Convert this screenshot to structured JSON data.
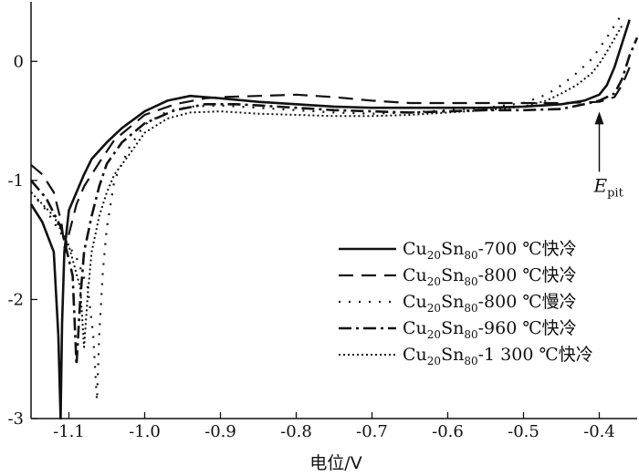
{
  "chart_data": {
    "type": "line",
    "title": "",
    "xlabel": "电位/V",
    "ylabel": "",
    "xlim": [
      -1.15,
      -0.35
    ],
    "ylim": [
      -3,
      0.5
    ],
    "x_ticks": [
      {
        "value": -1.1,
        "label": "-1.1"
      },
      {
        "value": -1.0,
        "label": "-1.0"
      },
      {
        "value": -0.9,
        "label": "-0.9"
      },
      {
        "value": -0.8,
        "label": "-0.8"
      },
      {
        "value": -0.7,
        "label": "-0.7"
      },
      {
        "value": -0.6,
        "label": "-0.6"
      },
      {
        "value": -0.5,
        "label": "-0.5"
      },
      {
        "value": -0.4,
        "label": "-0.4"
      }
    ],
    "y_ticks": [
      {
        "value": 0,
        "label": "0"
      },
      {
        "value": -1,
        "label": "-1"
      },
      {
        "value": -2,
        "label": "-2"
      },
      {
        "value": -3,
        "label": "-3"
      }
    ],
    "grid": false,
    "legend_position": "bottom-right",
    "annotation": {
      "text": "E",
      "sub": "pit",
      "x": -0.4,
      "y": -0.33
    },
    "series": [
      {
        "name": "Cu20Sn80-700 ℃快冷",
        "label_parts": [
          "Cu",
          "20",
          "Sn",
          "80",
          "-700 ℃快冷"
        ],
        "style": "solid",
        "x": [
          -1.15,
          -1.135,
          -1.12,
          -1.114,
          -1.111,
          -1.109,
          -1.106,
          -1.1,
          -1.09,
          -1.08,
          -1.07,
          -1.05,
          -1.03,
          -1.0,
          -0.97,
          -0.94,
          -0.92,
          -0.9,
          -0.85,
          -0.8,
          -0.75,
          -0.7,
          -0.65,
          -0.6,
          -0.55,
          -0.5,
          -0.45,
          -0.42,
          -0.4,
          -0.39,
          -0.38,
          -0.37,
          -0.36
        ],
        "y": [
          -1.2,
          -1.35,
          -1.6,
          -2.3,
          -3.0,
          -2.2,
          -1.6,
          -1.25,
          -1.1,
          -0.95,
          -0.82,
          -0.68,
          -0.56,
          -0.42,
          -0.33,
          -0.29,
          -0.3,
          -0.31,
          -0.34,
          -0.36,
          -0.38,
          -0.39,
          -0.39,
          -0.39,
          -0.39,
          -0.38,
          -0.36,
          -0.33,
          -0.28,
          -0.2,
          -0.05,
          0.15,
          0.35
        ]
      },
      {
        "name": "Cu20Sn80-800 ℃快冷",
        "label_parts": [
          "Cu",
          "20",
          "Sn",
          "80",
          "-800 ℃快冷"
        ],
        "style": "dashed",
        "x": [
          -1.15,
          -1.135,
          -1.12,
          -1.11,
          -1.105,
          -1.1,
          -1.09,
          -1.08,
          -1.06,
          -1.04,
          -1.0,
          -0.96,
          -0.92,
          -0.9,
          -0.85,
          -0.8,
          -0.75,
          -0.7,
          -0.65,
          -0.6,
          -0.55,
          -0.5,
          -0.45,
          -0.4,
          -0.38,
          -0.37,
          -0.36
        ],
        "y": [
          -0.87,
          -0.95,
          -1.1,
          -1.35,
          -1.6,
          -1.45,
          -1.2,
          -1.05,
          -0.85,
          -0.66,
          -0.45,
          -0.36,
          -0.31,
          -0.3,
          -0.29,
          -0.28,
          -0.3,
          -0.33,
          -0.35,
          -0.35,
          -0.35,
          -0.35,
          -0.35,
          -0.34,
          -0.3,
          -0.2,
          -0.05
        ]
      },
      {
        "name": "Cu20Sn80-800 ℃慢冷",
        "label_parts": [
          "Cu",
          "20",
          "Sn",
          "80",
          "-800 ℃慢冷"
        ],
        "style": "sparse-dot",
        "x": [
          -1.15,
          -1.13,
          -1.11,
          -1.09,
          -1.075,
          -1.068,
          -1.063,
          -1.06,
          -1.055,
          -1.05,
          -1.04,
          -1.02,
          -1.0,
          -0.97,
          -0.94,
          -0.9,
          -0.85,
          -0.8,
          -0.75,
          -0.7,
          -0.65,
          -0.6,
          -0.55,
          -0.5,
          -0.47,
          -0.45,
          -0.43,
          -0.41,
          -0.39,
          -0.37
        ],
        "y": [
          -1.1,
          -1.25,
          -1.45,
          -1.65,
          -1.9,
          -2.3,
          -2.85,
          -2.3,
          -1.75,
          -1.4,
          -1.0,
          -0.72,
          -0.53,
          -0.42,
          -0.38,
          -0.37,
          -0.39,
          -0.41,
          -0.43,
          -0.44,
          -0.43,
          -0.41,
          -0.39,
          -0.35,
          -0.28,
          -0.2,
          -0.1,
          0.02,
          0.2,
          0.4
        ]
      },
      {
        "name": "Cu20Sn80-960 ℃快冷",
        "label_parts": [
          "Cu",
          "20",
          "Sn",
          "80",
          "-960 ℃快冷"
        ],
        "style": "dash-dot",
        "x": [
          -1.15,
          -1.13,
          -1.11,
          -1.095,
          -1.09,
          -1.085,
          -1.08,
          -1.07,
          -1.06,
          -1.05,
          -1.03,
          -1.0,
          -0.96,
          -0.92,
          -0.88,
          -0.85,
          -0.8,
          -0.75,
          -0.7,
          -0.65,
          -0.6,
          -0.55,
          -0.5,
          -0.45,
          -0.42,
          -0.4,
          -0.38,
          -0.37,
          -0.36,
          -0.35
        ],
        "y": [
          -1.0,
          -1.15,
          -1.4,
          -1.8,
          -2.55,
          -2.0,
          -1.6,
          -1.3,
          -1.05,
          -0.86,
          -0.68,
          -0.52,
          -0.41,
          -0.36,
          -0.36,
          -0.37,
          -0.39,
          -0.41,
          -0.42,
          -0.43,
          -0.42,
          -0.41,
          -0.41,
          -0.4,
          -0.36,
          -0.33,
          -0.27,
          -0.15,
          0.05,
          0.2
        ]
      },
      {
        "name": "Cu20Sn80-1 300 ℃快冷",
        "label_parts": [
          "Cu",
          "20",
          "Sn",
          "80",
          "-1 300 ℃快冷"
        ],
        "style": "dotted",
        "x": [
          -1.15,
          -1.12,
          -1.1,
          -1.085,
          -1.08,
          -1.075,
          -1.07,
          -1.06,
          -1.05,
          -1.04,
          -1.02,
          -1.0,
          -0.97,
          -0.94,
          -0.9,
          -0.85,
          -0.8,
          -0.75,
          -0.7,
          -0.65,
          -0.6,
          -0.55,
          -0.5,
          -0.47,
          -0.45,
          -0.43,
          -0.41,
          -0.4,
          -0.39,
          -0.37
        ],
        "y": [
          -1.1,
          -1.3,
          -1.55,
          -1.9,
          -2.4,
          -1.95,
          -1.6,
          -1.3,
          -1.1,
          -0.95,
          -0.78,
          -0.6,
          -0.48,
          -0.43,
          -0.42,
          -0.44,
          -0.45,
          -0.46,
          -0.46,
          -0.45,
          -0.43,
          -0.41,
          -0.38,
          -0.33,
          -0.27,
          -0.2,
          -0.1,
          -0.02,
          0.08,
          0.3
        ]
      }
    ]
  }
}
